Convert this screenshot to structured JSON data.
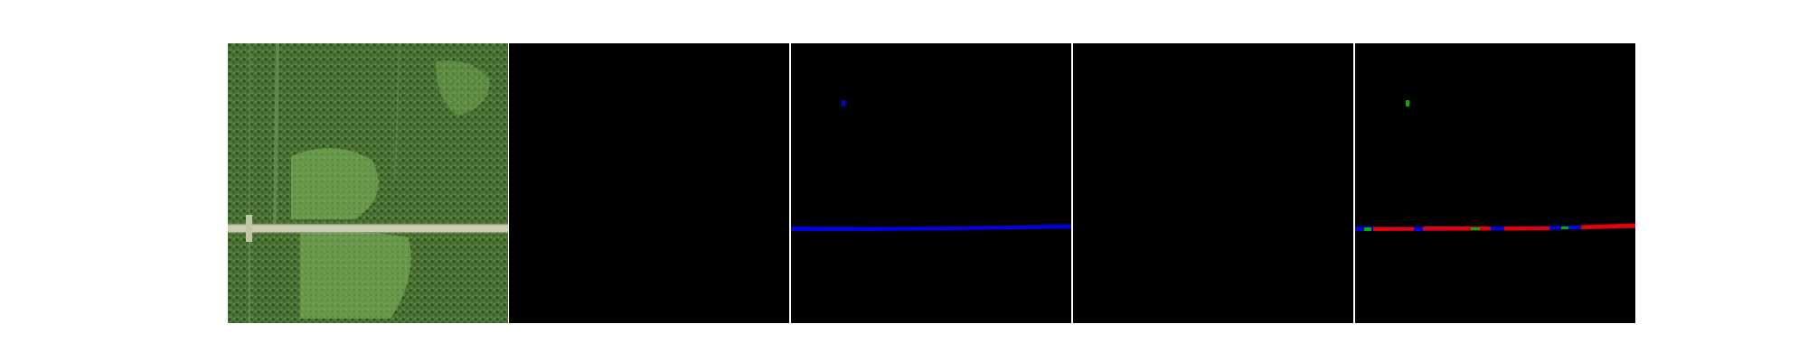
{
  "figure": {
    "background": "#ffffff",
    "panels": [
      {
        "kind": "aerial-photo",
        "content": "forest-with-road"
      },
      {
        "kind": "mask",
        "content": "empty"
      },
      {
        "kind": "mask",
        "content": "road-blue"
      },
      {
        "kind": "mask",
        "content": "empty"
      },
      {
        "kind": "mask",
        "content": "road-overlay-red-green-blue"
      }
    ]
  },
  "colors": {
    "mask_background": "#000000",
    "road_blue": "#0000e6",
    "road_red": "#e60000",
    "road_green": "#00b000",
    "aerial_base": "#4f7a3a",
    "road_surface": "#c9ccb0"
  }
}
